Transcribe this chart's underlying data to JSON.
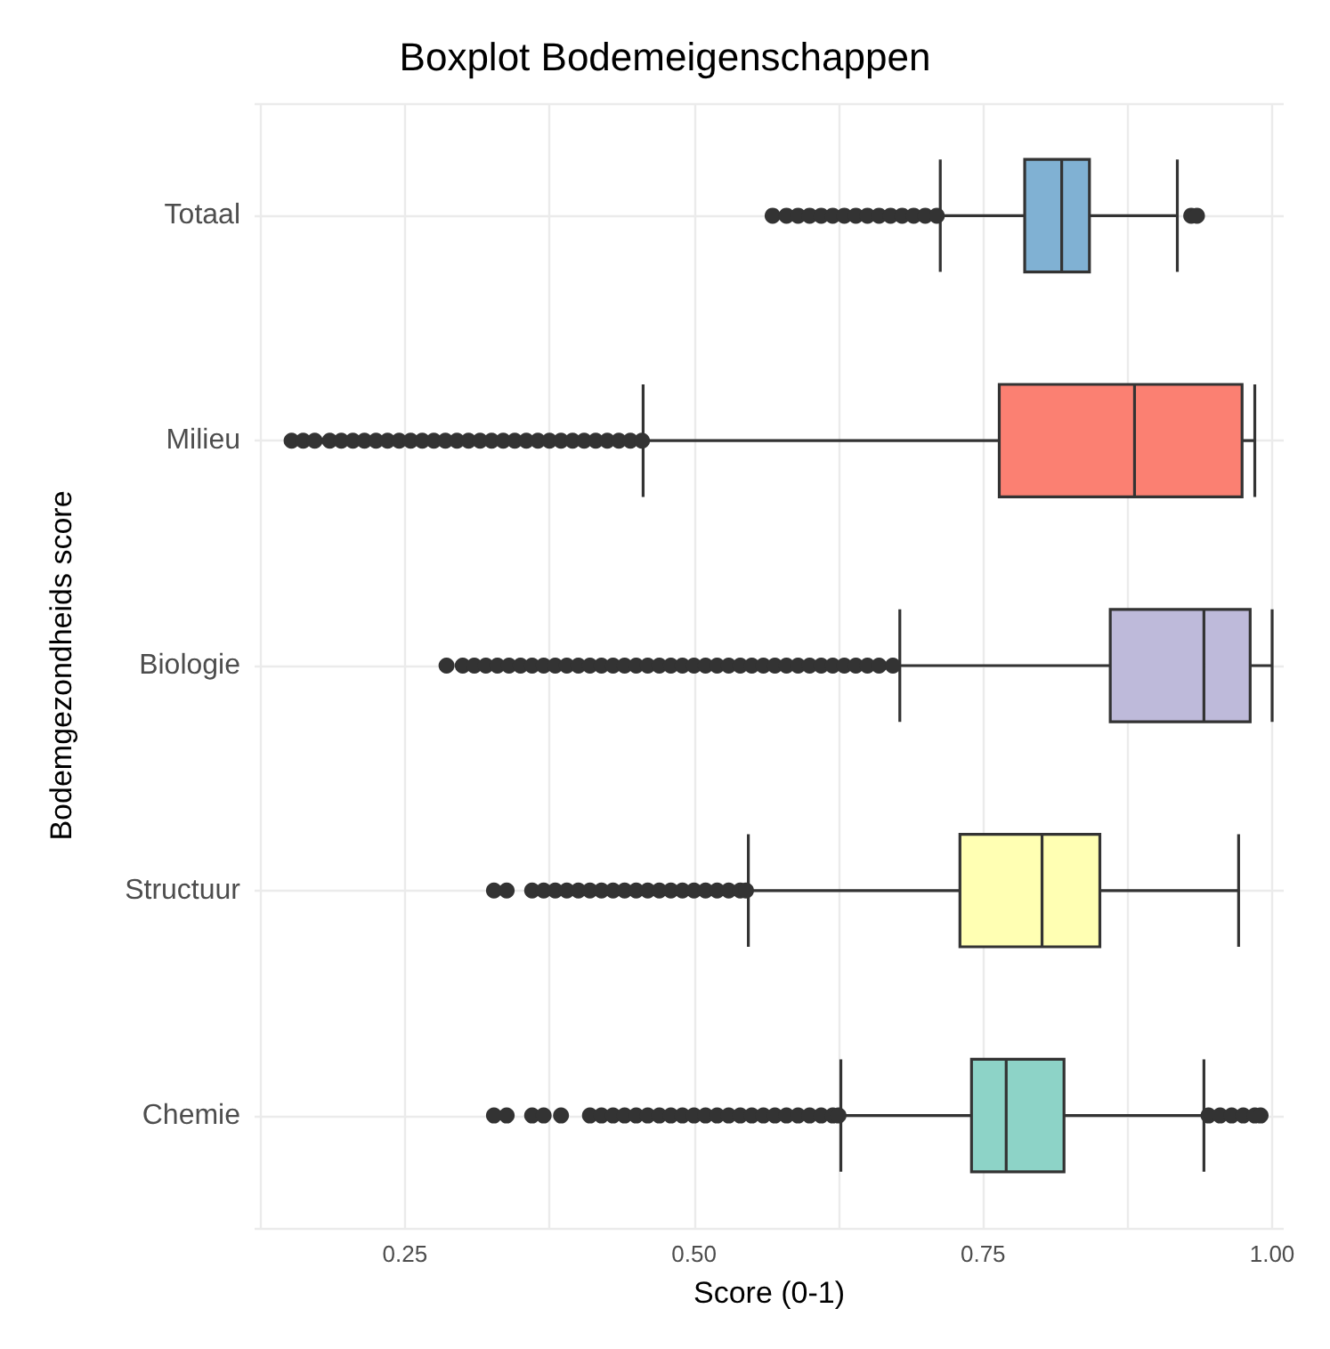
{
  "chart_data": {
    "type": "box",
    "title": "Boxplot Bodemeigenschappen",
    "xlabel": "Score (0-1)",
    "ylabel": "Bodemgezondheids score",
    "orientation": "horizontal",
    "categories": [
      "Totaal",
      "Milieu",
      "Biologie",
      "Structuur",
      "Chemie"
    ],
    "colors": [
      "#80b1d3",
      "#fb8072",
      "#bebada",
      "#ffffb3",
      "#8dd3c7"
    ],
    "boxes": [
      {
        "low": 0.713,
        "q1": 0.786,
        "median": 0.818,
        "q3": 0.842,
        "high": 0.918,
        "outliers": [
          0.568,
          0.58,
          0.59,
          0.6,
          0.61,
          0.62,
          0.63,
          0.64,
          0.65,
          0.66,
          0.67,
          0.68,
          0.69,
          0.7,
          0.71,
          0.93,
          0.935
        ]
      },
      {
        "low": 0.456,
        "q1": 0.764,
        "median": 0.881,
        "q3": 0.974,
        "high": 0.985,
        "outliers": [
          0.152,
          0.162,
          0.172,
          0.185,
          0.195,
          0.205,
          0.215,
          0.225,
          0.235,
          0.245,
          0.255,
          0.265,
          0.275,
          0.285,
          0.295,
          0.305,
          0.315,
          0.325,
          0.335,
          0.345,
          0.355,
          0.365,
          0.375,
          0.385,
          0.395,
          0.405,
          0.415,
          0.425,
          0.435,
          0.445,
          0.455
        ]
      },
      {
        "low": 0.678,
        "q1": 0.86,
        "median": 0.941,
        "q3": 0.981,
        "high": 1.0,
        "outliers": [
          0.286,
          0.3,
          0.31,
          0.32,
          0.33,
          0.34,
          0.35,
          0.36,
          0.37,
          0.38,
          0.39,
          0.4,
          0.41,
          0.42,
          0.43,
          0.44,
          0.45,
          0.46,
          0.47,
          0.48,
          0.49,
          0.5,
          0.51,
          0.52,
          0.53,
          0.54,
          0.55,
          0.56,
          0.57,
          0.58,
          0.59,
          0.6,
          0.61,
          0.62,
          0.63,
          0.64,
          0.65,
          0.66,
          0.672
        ]
      },
      {
        "low": 0.547,
        "q1": 0.73,
        "median": 0.801,
        "q3": 0.851,
        "high": 0.971,
        "outliers": [
          0.327,
          0.338,
          0.36,
          0.37,
          0.38,
          0.39,
          0.4,
          0.41,
          0.42,
          0.43,
          0.44,
          0.45,
          0.46,
          0.47,
          0.48,
          0.49,
          0.5,
          0.51,
          0.52,
          0.53,
          0.54,
          0.545
        ]
      },
      {
        "low": 0.627,
        "q1": 0.74,
        "median": 0.77,
        "q3": 0.82,
        "high": 0.941,
        "outliers": [
          0.327,
          0.338,
          0.36,
          0.37,
          0.385,
          0.41,
          0.42,
          0.43,
          0.44,
          0.45,
          0.46,
          0.47,
          0.48,
          0.49,
          0.5,
          0.51,
          0.52,
          0.53,
          0.54,
          0.55,
          0.56,
          0.57,
          0.58,
          0.59,
          0.6,
          0.61,
          0.62,
          0.625,
          0.945,
          0.955,
          0.965,
          0.975,
          0.985,
          0.99
        ]
      }
    ],
    "xlim": [
      0.12,
      1.01
    ],
    "xticks": [
      {
        "value": 0.125,
        "label": null
      },
      {
        "value": 0.25,
        "label": "0.25"
      },
      {
        "value": 0.375,
        "label": null
      },
      {
        "value": 0.5,
        "label": "0.50"
      },
      {
        "value": 0.625,
        "label": null
      },
      {
        "value": 0.75,
        "label": "0.75"
      },
      {
        "value": 0.875,
        "label": null
      },
      {
        "value": 1.0,
        "label": "1.00"
      }
    ],
    "grid": true,
    "marker": "circle"
  }
}
